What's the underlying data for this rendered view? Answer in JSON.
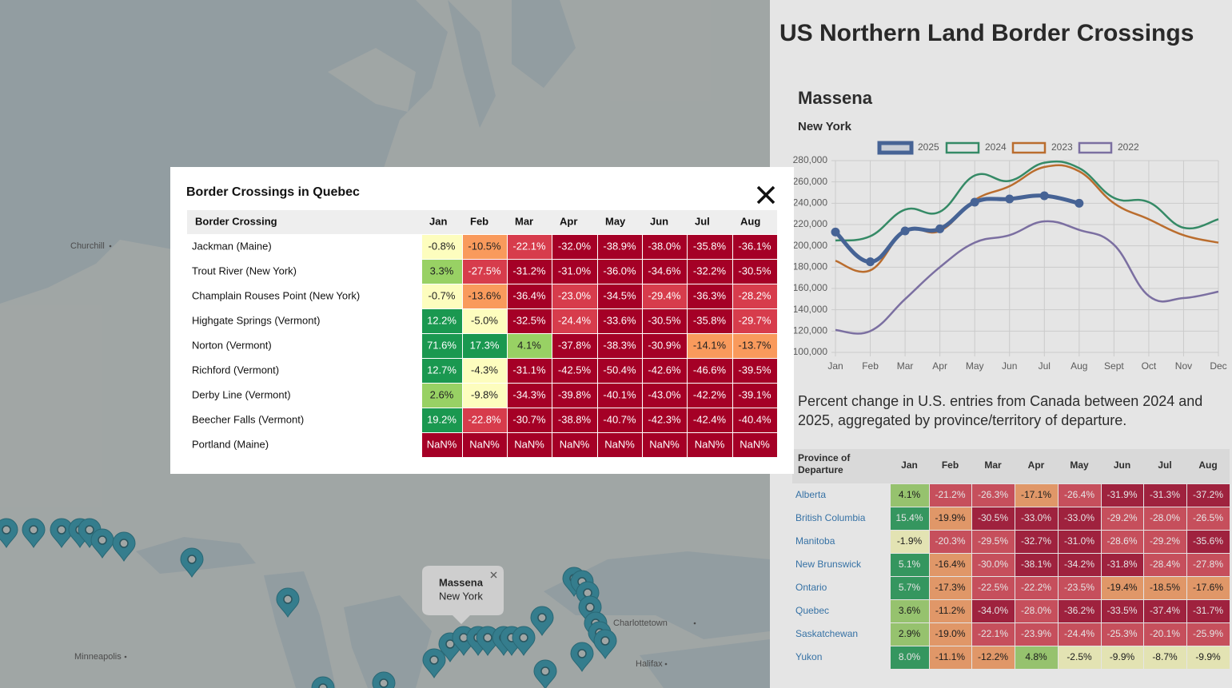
{
  "map": {
    "places": [
      "Churchill",
      "Minneapolis",
      "Charlottetown",
      "Halifax"
    ],
    "popup": {
      "title": "Massena",
      "subtitle": "New York"
    }
  },
  "modal": {
    "title": "Border Crossings in Quebec",
    "columns": [
      "Border Crossing",
      "Jan",
      "Feb",
      "Mar",
      "Apr",
      "May",
      "Jun",
      "Jul",
      "Aug"
    ],
    "rows": [
      [
        "Jackman (Maine)",
        "-0.8%",
        "-10.5%",
        "-22.1%",
        "-32.0%",
        "-38.9%",
        "-38.0%",
        "-35.8%",
        "-36.1%"
      ],
      [
        "Trout River (New York)",
        "3.3%",
        "-27.5%",
        "-31.2%",
        "-31.0%",
        "-36.0%",
        "-34.6%",
        "-32.2%",
        "-30.5%"
      ],
      [
        "Champlain Rouses Point (New York)",
        "-0.7%",
        "-13.6%",
        "-36.4%",
        "-23.0%",
        "-34.5%",
        "-29.4%",
        "-36.3%",
        "-28.2%"
      ],
      [
        "Highgate Springs (Vermont)",
        "12.2%",
        "-5.0%",
        "-32.5%",
        "-24.4%",
        "-33.6%",
        "-30.5%",
        "-35.8%",
        "-29.7%"
      ],
      [
        "Norton (Vermont)",
        "71.6%",
        "17.3%",
        "4.1%",
        "-37.8%",
        "-38.3%",
        "-30.9%",
        "-14.1%",
        "-13.7%"
      ],
      [
        "Richford (Vermont)",
        "12.7%",
        "-4.3%",
        "-31.1%",
        "-42.5%",
        "-50.4%",
        "-42.6%",
        "-46.6%",
        "-39.5%"
      ],
      [
        "Derby Line (Vermont)",
        "2.6%",
        "-9.8%",
        "-34.3%",
        "-39.8%",
        "-40.1%",
        "-43.0%",
        "-42.2%",
        "-39.1%"
      ],
      [
        "Beecher Falls (Vermont)",
        "19.2%",
        "-22.8%",
        "-30.7%",
        "-38.8%",
        "-40.7%",
        "-42.3%",
        "-42.4%",
        "-40.4%"
      ],
      [
        "Portland (Maine)",
        "NaN%",
        "NaN%",
        "NaN%",
        "NaN%",
        "NaN%",
        "NaN%",
        "NaN%",
        "NaN%"
      ]
    ]
  },
  "sidebar": {
    "title": "US Northern Land Border Crossings",
    "station": "Massena",
    "state": "New York",
    "description": "Percent change in U.S. entries from Canada between 2024 and 2025, aggregated by province/territory of departure.",
    "table": {
      "columns": [
        "Province of Departure",
        "Jan",
        "Feb",
        "Mar",
        "Apr",
        "May",
        "Jun",
        "Jul",
        "Aug"
      ],
      "rows": [
        [
          "Alberta",
          "4.1%",
          "-21.2%",
          "-26.3%",
          "-17.1%",
          "-26.4%",
          "-31.9%",
          "-31.3%",
          "-37.2%"
        ],
        [
          "British Columbia",
          "15.4%",
          "-19.9%",
          "-30.5%",
          "-33.0%",
          "-33.0%",
          "-29.2%",
          "-28.0%",
          "-26.5%"
        ],
        [
          "Manitoba",
          "-1.9%",
          "-20.3%",
          "-29.5%",
          "-32.7%",
          "-31.0%",
          "-28.6%",
          "-29.2%",
          "-35.6%"
        ],
        [
          "New Brunswick",
          "5.1%",
          "-16.4%",
          "-30.0%",
          "-38.1%",
          "-34.2%",
          "-31.8%",
          "-28.4%",
          "-27.8%"
        ],
        [
          "Ontario",
          "5.7%",
          "-17.3%",
          "-22.5%",
          "-22.2%",
          "-23.5%",
          "-19.4%",
          "-18.5%",
          "-17.6%"
        ],
        [
          "Quebec",
          "3.6%",
          "-11.2%",
          "-34.0%",
          "-28.0%",
          "-36.2%",
          "-33.5%",
          "-37.4%",
          "-31.7%"
        ],
        [
          "Saskatchewan",
          "2.9%",
          "-19.0%",
          "-22.1%",
          "-23.9%",
          "-24.4%",
          "-25.3%",
          "-20.1%",
          "-25.9%"
        ],
        [
          "Yukon",
          "8.0%",
          "-11.1%",
          "-12.2%",
          "4.8%",
          "-2.5%",
          "-9.9%",
          "-8.7%",
          "-9.9%"
        ]
      ]
    }
  },
  "chart_data": {
    "type": "line",
    "categories": [
      "Jan",
      "Feb",
      "Mar",
      "Apr",
      "May",
      "Jun",
      "Jul",
      "Aug",
      "Sept",
      "Oct",
      "Nov",
      "Dec"
    ],
    "ylim": [
      100000,
      280000
    ],
    "yticks": [
      {
        "value": 100000,
        "label": "100,000"
      },
      {
        "value": 120000,
        "label": "120,000"
      },
      {
        "value": 140000,
        "label": "140,000"
      },
      {
        "value": 160000,
        "label": "160,000"
      },
      {
        "value": 180000,
        "label": "180,000"
      },
      {
        "value": 200000,
        "label": "200,000"
      },
      {
        "value": 220000,
        "label": "220,000"
      },
      {
        "value": 240000,
        "label": "240,000"
      },
      {
        "value": 260000,
        "label": "260,000"
      },
      {
        "value": 280000,
        "label": "280,000"
      }
    ],
    "grid": true,
    "series": [
      {
        "name": "2025",
        "color": "#4f6fa6",
        "values": [
          213000,
          185000,
          214000,
          216000,
          241000,
          244000,
          247000,
          240000,
          null,
          null,
          null,
          null
        ]
      },
      {
        "name": "2024",
        "color": "#3c9a72",
        "values": [
          205000,
          209000,
          234000,
          232000,
          266000,
          261000,
          278000,
          273000,
          245000,
          241000,
          217000,
          225000
        ]
      },
      {
        "name": "2023",
        "color": "#d07a34",
        "values": [
          186000,
          177000,
          214000,
          214000,
          243000,
          256000,
          274000,
          270000,
          240000,
          225000,
          210000,
          203000
        ]
      },
      {
        "name": "2022",
        "color": "#8a7cb4",
        "values": [
          121000,
          120000,
          150000,
          180000,
          203000,
          210000,
          223000,
          215000,
          201000,
          153000,
          151000,
          157000
        ]
      }
    ]
  }
}
